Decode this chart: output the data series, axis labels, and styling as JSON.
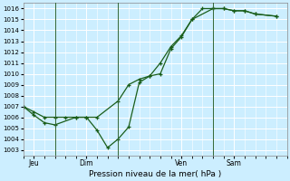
{
  "xlabel": "Pression niveau de la mer( hPa )",
  "bg_color": "#cceeff",
  "grid_color": "#ffffff",
  "line_color": "#1a5e1a",
  "ylim": [
    1002.5,
    1016.5
  ],
  "yticks": [
    1003,
    1004,
    1005,
    1006,
    1007,
    1008,
    1009,
    1010,
    1011,
    1012,
    1013,
    1014,
    1015,
    1016
  ],
  "xtick_labels": [
    "Jeu",
    "Dim",
    "Ven",
    "Sam"
  ],
  "xtick_positions": [
    0.5,
    3.0,
    7.5,
    10.0
  ],
  "vline_positions": [
    1.5,
    4.5,
    9.0
  ],
  "xlim": [
    0,
    12.5
  ],
  "series1_x": [
    0.0,
    0.5,
    1.0,
    1.5,
    2.5,
    3.0,
    3.5,
    4.0,
    4.5,
    5.0,
    5.5,
    6.0,
    6.5,
    7.0,
    7.5,
    8.0,
    8.5,
    9.0,
    9.5,
    10.0,
    10.5,
    11.0,
    12.0
  ],
  "series1_y": [
    1007.0,
    1006.2,
    1005.5,
    1005.3,
    1006.0,
    1006.0,
    1004.8,
    1003.2,
    1004.0,
    1005.1,
    1009.2,
    1009.8,
    1010.0,
    1012.3,
    1013.4,
    1015.0,
    1016.0,
    1016.0,
    1016.0,
    1015.8,
    1015.8,
    1015.5,
    1015.3
  ],
  "series2_x": [
    0.0,
    0.5,
    1.0,
    1.5,
    2.0,
    2.5,
    3.0,
    3.5,
    4.5,
    5.0,
    5.5,
    6.0,
    6.5,
    7.0,
    7.5,
    8.0,
    9.0,
    9.5,
    10.0,
    10.5,
    11.0,
    12.0
  ],
  "series2_y": [
    1007.0,
    1006.5,
    1006.0,
    1006.0,
    1006.0,
    1006.0,
    1006.0,
    1006.0,
    1007.5,
    1009.0,
    1009.5,
    1009.8,
    1011.0,
    1012.5,
    1013.5,
    1015.0,
    1016.0,
    1016.0,
    1015.8,
    1015.8,
    1015.5,
    1015.3
  ]
}
